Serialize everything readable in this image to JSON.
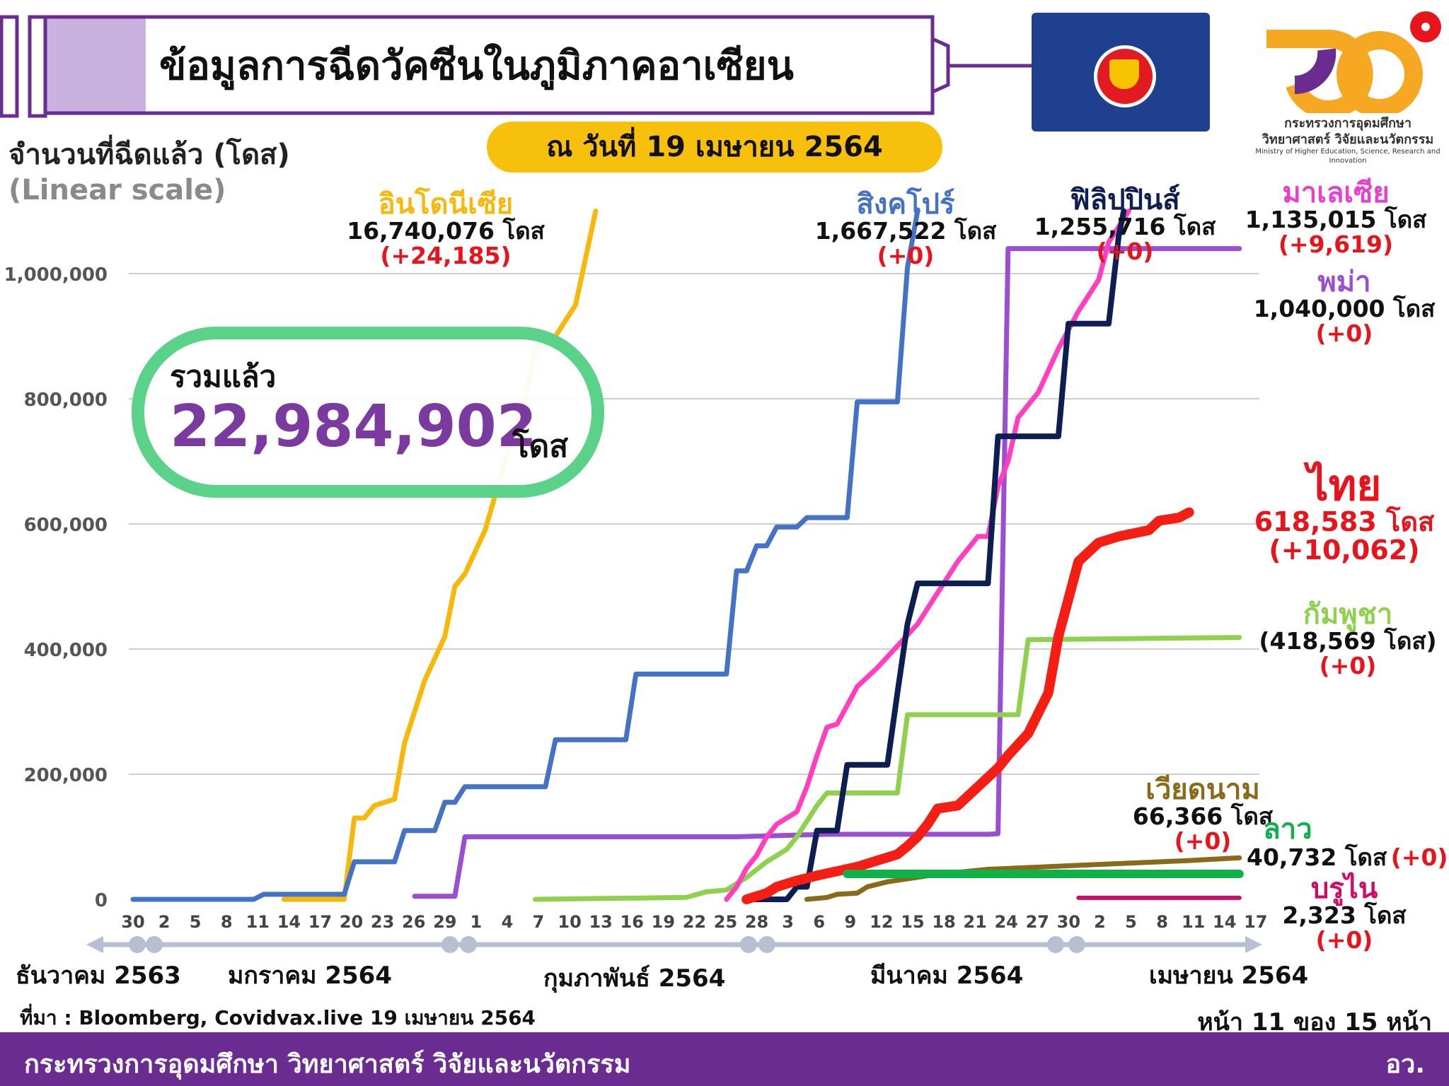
{
  "header": {
    "title": "ข้อมูลการฉีดวัคซีนในภูมิภาคอาเซียน",
    "date": "ณ วันที่ 19 เมษายน 2564",
    "logo_line1": "กระทรวงการอุดมศึกษา",
    "logo_line2": "วิทยาศาสตร์ วิจัยและนวัตกรรม",
    "logo_line3": "Ministry of Higher Education, Science, Research and Innovation"
  },
  "axis": {
    "ylabel": "จำนวนที่ฉีดแล้ว (โดส)",
    "yscale_note": "(Linear scale)"
  },
  "total": {
    "label": "รวมแล้ว",
    "value": "22,984,902",
    "unit": "โดส"
  },
  "countries": {
    "indonesia": {
      "name": "อินโดนีเซีย",
      "value": "16,740,076 โดส",
      "delta": "(+24,185)",
      "color": "#f7b80a"
    },
    "singapore": {
      "name": "สิงคโปร์",
      "value": "1,667,522 โดส",
      "delta": "(+0)",
      "color": "#4472c4"
    },
    "philippines": {
      "name": "ฟิลิปปินส์",
      "value": "1,255,716 โดส",
      "delta": "(+0)",
      "color": "#0d1e52"
    },
    "malaysia": {
      "name": "มาเลเซีย",
      "value": "1,135,015 โดส",
      "delta": "(+9,619)",
      "color": "#ff3fc0"
    },
    "myanmar": {
      "name": "พม่า",
      "value": "1,040,000 โดส",
      "delta": "(+0)",
      "color": "#9b4fd0"
    },
    "thailand": {
      "name": "ไทย",
      "value": "618,583 โดส",
      "delta": "(+10,062)",
      "color": "#f41e14"
    },
    "cambodia": {
      "name": "กัมพูชา",
      "value": "(418,569 โดส)",
      "delta": "(+0)",
      "color": "#8fd14f"
    },
    "vietnam": {
      "name": "เวียดนาม",
      "value": "66,366 โดส",
      "delta": "(+0)",
      "color": "#8a6a1a"
    },
    "laos": {
      "name": "ลาว",
      "value": "40,732 โดส",
      "delta": "(+0)",
      "color": "#11b14a"
    },
    "brunei": {
      "name": "บรูไน",
      "value": "2,323 โดส",
      "delta": "(+0)",
      "color": "#d10a6a"
    }
  },
  "months": [
    "ธันวาคม 2563",
    "มกราคม 2564",
    "กุมภาพันธ์ 2564",
    "มีนาคม 2564",
    "เมษายน 2564"
  ],
  "source": "ที่มา : Bloomberg, Covidvax.live 19 เมษายน 2564",
  "page": "หน้า 11 ของ 15 หน้า",
  "footer": {
    "ministry": "กระทรวงการอุดมศึกษา วิทยาศาสตร์ วิจัยและนวัตกรรม",
    "abbr": "อว."
  },
  "chart_data": {
    "type": "line",
    "y_ticks": [
      "0",
      "200,000",
      "400,000",
      "600,000",
      "800,000",
      "1,000,000"
    ],
    "ylim": [
      0,
      1100000
    ],
    "x_ticks": [
      "30",
      "2",
      "5",
      "8",
      "11",
      "14",
      "17",
      "20",
      "23",
      "26",
      "29",
      "1",
      "4",
      "7",
      "10",
      "13",
      "16",
      "19",
      "22",
      "25",
      "28",
      "3",
      "6",
      "9",
      "12",
      "15",
      "18",
      "21",
      "24",
      "27",
      "30",
      "2",
      "5",
      "8",
      "11",
      "14",
      "17"
    ],
    "x_range_days": [
      0,
      111
    ],
    "note_x": "x values are days from 30 Dec 2563",
    "series": [
      {
        "key": "indonesia",
        "color": "#f7b80a",
        "width": 7,
        "points": [
          [
            15,
            0
          ],
          [
            20,
            0
          ],
          [
            21,
            0
          ],
          [
            22,
            130000
          ],
          [
            23,
            130000
          ],
          [
            24,
            150000
          ],
          [
            26,
            160000
          ],
          [
            27,
            250000
          ],
          [
            29,
            350000
          ],
          [
            31,
            420000
          ],
          [
            32,
            500000
          ],
          [
            33,
            520000
          ],
          [
            35,
            590000
          ],
          [
            37,
            700000
          ],
          [
            39,
            800000
          ],
          [
            40,
            880000
          ],
          [
            42,
            900000
          ],
          [
            44,
            950000
          ],
          [
            46,
            1100000
          ]
        ]
      },
      {
        "key": "singapore",
        "color": "#4472c4",
        "width": 7,
        "points": [
          [
            0,
            0
          ],
          [
            12,
            0
          ],
          [
            13,
            8000
          ],
          [
            20,
            8000
          ],
          [
            21,
            8000
          ],
          [
            22,
            60000
          ],
          [
            26,
            60000
          ],
          [
            27,
            110000
          ],
          [
            30,
            110000
          ],
          [
            31,
            155000
          ],
          [
            32,
            155000
          ],
          [
            33,
            180000
          ],
          [
            41,
            180000
          ],
          [
            42,
            255000
          ],
          [
            49,
            255000
          ],
          [
            50,
            360000
          ],
          [
            59,
            360000
          ],
          [
            60,
            525000
          ],
          [
            61,
            525000
          ],
          [
            62,
            565000
          ],
          [
            63,
            565000
          ],
          [
            64,
            595000
          ],
          [
            66,
            595000
          ],
          [
            67,
            610000
          ],
          [
            71,
            610000
          ],
          [
            72,
            795000
          ],
          [
            76,
            795000
          ],
          [
            77,
            1010000
          ],
          [
            78,
            1100000
          ]
        ]
      },
      {
        "key": "myanmar",
        "color": "#9b4fd0",
        "width": 7,
        "points": [
          [
            28,
            5000
          ],
          [
            32,
            5000
          ],
          [
            33,
            100000
          ],
          [
            60,
            100000
          ],
          [
            69,
            104000
          ],
          [
            85,
            104000
          ],
          [
            86,
            105000
          ],
          [
            87,
            1040000
          ],
          [
            110,
            1040000
          ]
        ]
      },
      {
        "key": "cambodia",
        "color": "#8fd14f",
        "width": 7,
        "points": [
          [
            40,
            0
          ],
          [
            55,
            3000
          ],
          [
            57,
            12000
          ],
          [
            59,
            15000
          ],
          [
            61,
            35000
          ],
          [
            63,
            60000
          ],
          [
            65,
            80000
          ],
          [
            66,
            100000
          ],
          [
            68,
            150000
          ],
          [
            69,
            170000
          ],
          [
            74,
            170000
          ],
          [
            76,
            170000
          ],
          [
            77,
            295000
          ],
          [
            87,
            295000
          ],
          [
            88,
            295000
          ],
          [
            89,
            415000
          ],
          [
            110,
            418569
          ]
        ]
      },
      {
        "key": "malaysia",
        "color": "#ff3fc0",
        "width": 7,
        "points": [
          [
            59,
            0
          ],
          [
            60,
            20000
          ],
          [
            61,
            50000
          ],
          [
            62,
            70000
          ],
          [
            63,
            100000
          ],
          [
            64,
            120000
          ],
          [
            66,
            140000
          ],
          [
            67,
            180000
          ],
          [
            68,
            230000
          ],
          [
            69,
            275000
          ],
          [
            70,
            280000
          ],
          [
            71,
            310000
          ],
          [
            72,
            340000
          ],
          [
            74,
            370000
          ],
          [
            76,
            405000
          ],
          [
            78,
            440000
          ],
          [
            80,
            490000
          ],
          [
            82,
            540000
          ],
          [
            84,
            580000
          ],
          [
            85,
            580000
          ],
          [
            86,
            660000
          ],
          [
            87,
            700000
          ],
          [
            88,
            770000
          ],
          [
            90,
            810000
          ],
          [
            92,
            880000
          ],
          [
            94,
            940000
          ],
          [
            96,
            990000
          ],
          [
            97,
            1050000
          ],
          [
            99,
            1100000
          ]
        ]
      },
      {
        "key": "philippines",
        "color": "#0d1e52",
        "width": 8,
        "points": [
          [
            61,
            0
          ],
          [
            65,
            0
          ],
          [
            66,
            20000
          ],
          [
            67,
            20000
          ],
          [
            68,
            110000
          ],
          [
            70,
            110000
          ],
          [
            71,
            215000
          ],
          [
            75,
            215000
          ],
          [
            76,
            330000
          ],
          [
            77,
            440000
          ],
          [
            78,
            505000
          ],
          [
            85,
            505000
          ],
          [
            86,
            740000
          ],
          [
            92,
            740000
          ],
          [
            93,
            920000
          ],
          [
            97,
            920000
          ],
          [
            98,
            1060000
          ],
          [
            98.5,
            1100000
          ]
        ]
      },
      {
        "key": "thailand",
        "color": "#f41e14",
        "width": 14,
        "points": [
          [
            61,
            0
          ],
          [
            63,
            10000
          ],
          [
            64,
            20000
          ],
          [
            66,
            30000
          ],
          [
            68,
            38000
          ],
          [
            70,
            45000
          ],
          [
            72,
            52000
          ],
          [
            74,
            62000
          ],
          [
            76,
            72000
          ],
          [
            77,
            85000
          ],
          [
            78,
            100000
          ],
          [
            79,
            120000
          ],
          [
            80,
            145000
          ],
          [
            82,
            150000
          ],
          [
            84,
            180000
          ],
          [
            86,
            210000
          ],
          [
            87,
            230000
          ],
          [
            89,
            265000
          ],
          [
            91,
            330000
          ],
          [
            92,
            420000
          ],
          [
            94,
            540000
          ],
          [
            96,
            570000
          ],
          [
            98,
            580000
          ],
          [
            101,
            590000
          ],
          [
            102,
            605000
          ],
          [
            104,
            610000
          ],
          [
            105,
            618583
          ]
        ]
      },
      {
        "key": "vietnam",
        "color": "#8a6a1a",
        "width": 7,
        "points": [
          [
            67,
            0
          ],
          [
            69,
            3000
          ],
          [
            70,
            8000
          ],
          [
            72,
            10000
          ],
          [
            73,
            20000
          ],
          [
            75,
            28000
          ],
          [
            80,
            40000
          ],
          [
            85,
            48000
          ],
          [
            95,
            55000
          ],
          [
            105,
            62000
          ],
          [
            110,
            66366
          ]
        ]
      },
      {
        "key": "laos",
        "color": "#11b14a",
        "width": 12,
        "points": [
          [
            71,
            40732
          ],
          [
            110,
            40732
          ]
        ]
      },
      {
        "key": "brunei",
        "color": "#d10a6a",
        "width": 6,
        "points": [
          [
            94,
            2323
          ],
          [
            110,
            2323
          ]
        ]
      }
    ]
  }
}
